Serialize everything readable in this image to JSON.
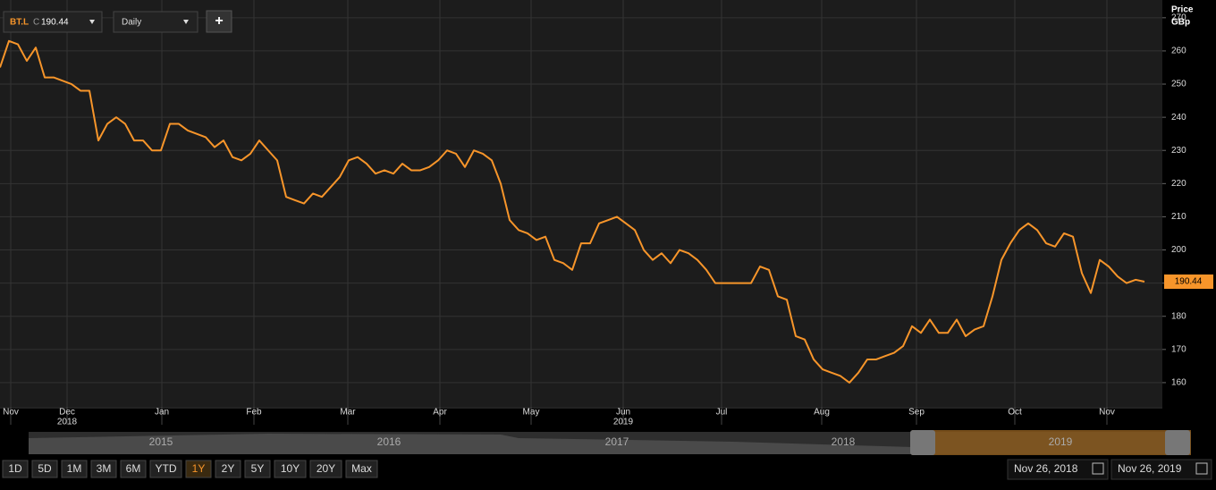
{
  "toolbar": {
    "symbol": "BT.L",
    "close_label": "C",
    "close_value": "190.44",
    "interval": "Daily",
    "add": "+"
  },
  "chart_data": {
    "type": "line",
    "y_axis_title": "Price",
    "y_axis_unit": "GBp",
    "color": "#f7952a",
    "values": [
      255,
      263,
      262,
      257,
      261,
      252,
      252,
      251,
      250,
      248,
      248,
      233,
      238,
      240,
      238,
      233,
      233,
      230,
      230,
      238,
      238,
      236,
      235,
      234,
      231,
      233,
      228,
      227,
      229,
      233,
      230,
      227,
      216,
      215,
      214,
      217,
      216,
      219,
      222,
      227,
      228,
      226,
      223,
      224,
      223,
      226,
      224,
      224,
      225,
      227,
      230,
      229,
      225,
      230,
      229,
      227,
      220,
      209,
      206,
      205,
      203,
      204,
      197,
      196,
      194,
      202,
      202,
      208,
      209,
      210,
      208,
      206,
      200,
      197,
      199,
      196,
      200,
      199,
      197,
      194,
      190,
      190,
      190,
      190,
      190,
      195,
      194,
      186,
      185,
      174,
      173,
      167,
      164,
      163,
      162,
      160,
      163,
      167,
      167,
      168,
      169,
      171,
      177,
      175,
      179,
      175,
      175,
      179,
      174,
      176,
      177,
      186,
      197,
      202,
      206,
      208,
      206,
      202,
      201,
      205,
      204,
      193,
      187,
      197,
      195,
      192,
      190,
      191,
      190.44
    ],
    "last_value_label": "190.44",
    "xlim": [
      0,
      130
    ],
    "ylim": [
      152.7,
      274
    ],
    "xticks": [
      {
        "value": 1.2,
        "label": "Nov"
      },
      {
        "value": 7.5,
        "label": "Dec"
      },
      {
        "value": 18.1,
        "label": "Jan"
      },
      {
        "value": 28.4,
        "label": "Feb"
      },
      {
        "value": 38.9,
        "label": "Mar"
      },
      {
        "value": 49.2,
        "label": "Apr"
      },
      {
        "value": 59.4,
        "label": "May"
      },
      {
        "value": 69.7,
        "label": "Jun"
      },
      {
        "value": 80.7,
        "label": "Jul"
      },
      {
        "value": 91.9,
        "label": "Aug"
      },
      {
        "value": 102.5,
        "label": "Sep"
      },
      {
        "value": 113.5,
        "label": "Oct"
      },
      {
        "value": 123.8,
        "label": "Nov"
      }
    ],
    "xtick_years": [
      {
        "value": 7.5,
        "label": "2018"
      },
      {
        "value": 69.7,
        "label": "2019"
      }
    ],
    "yticks": [
      160,
      170,
      180,
      190,
      200,
      210,
      220,
      230,
      240,
      250,
      260,
      270
    ],
    "grid": true
  },
  "navigator": {
    "years": [
      "2015",
      "2016",
      "2017",
      "2018",
      "2019"
    ]
  },
  "range_buttons": [
    "1D",
    "5D",
    "1M",
    "3M",
    "6M",
    "YTD",
    "1Y",
    "2Y",
    "5Y",
    "10Y",
    "20Y",
    "Max"
  ],
  "active_range_index": 6,
  "date_range": {
    "from": "Nov 26, 2018",
    "to": "Nov 26, 2019"
  }
}
